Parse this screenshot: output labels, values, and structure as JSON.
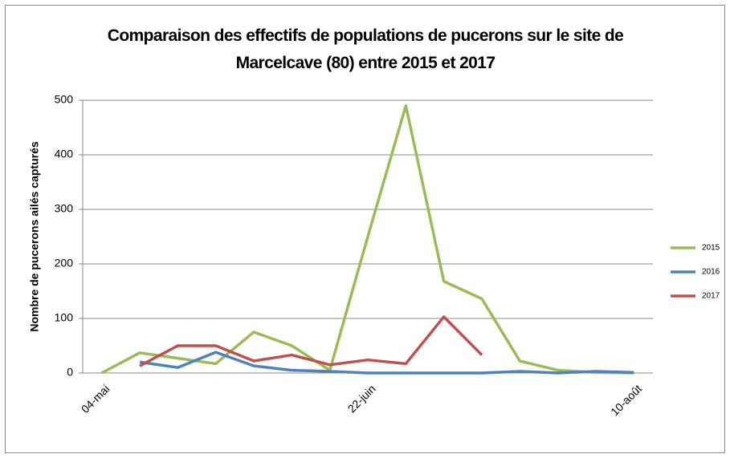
{
  "chart_data": {
    "type": "line",
    "title": "Comparaison des effectifs de populations de pucerons sur le site de Marcelcave (80) entre 2015 et 2017",
    "y_label": "Nombre de pucerons ailés capturés",
    "categories": [
      "04-mai",
      null,
      null,
      null,
      null,
      null,
      null,
      "22-juin",
      null,
      null,
      null,
      null,
      null,
      null,
      "10-août"
    ],
    "series": [
      {
        "name": "2015",
        "color": "#9bbb59",
        "values": [
          0,
          37,
          27,
          17,
          75,
          50,
          5,
          250,
          490,
          168,
          136,
          22,
          5,
          1,
          0
        ]
      },
      {
        "name": "2016",
        "color": "#4f81bd",
        "values": [
          null,
          20,
          10,
          38,
          13,
          5,
          3,
          0,
          0,
          0,
          0,
          3,
          0,
          3,
          1
        ]
      },
      {
        "name": "2017",
        "color": "#c0504d",
        "values": [
          null,
          13,
          50,
          50,
          22,
          33,
          15,
          24,
          17,
          103,
          33,
          null,
          null,
          null,
          null
        ]
      }
    ],
    "ylim": [
      0,
      500
    ],
    "yticks": [
      0,
      100,
      200,
      300,
      400,
      500
    ],
    "grid": true,
    "legend": "right"
  }
}
